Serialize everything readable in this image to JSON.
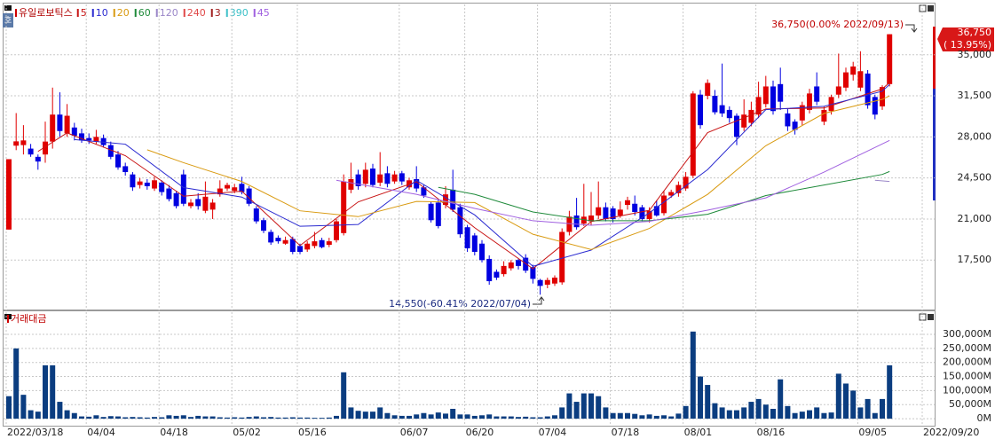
{
  "chart_data": {
    "type": "candlestick",
    "title": "유일로보틱스",
    "side_button": "호",
    "x": [
      "2022/03/18",
      "2022/03/21",
      "2022/03/22",
      "2022/03/23",
      "2022/03/24",
      "2022/03/25",
      "2022/03/28",
      "2022/03/29",
      "2022/03/30",
      "2022/03/31",
      "2022/04/01",
      "2022/04/04",
      "2022/04/05",
      "2022/04/06",
      "2022/04/07",
      "2022/04/08",
      "2022/04/11",
      "2022/04/12",
      "2022/04/13",
      "2022/04/14",
      "2022/04/15",
      "2022/04/18",
      "2022/04/19",
      "2022/04/20",
      "2022/04/21",
      "2022/04/22",
      "2022/04/25",
      "2022/04/26",
      "2022/04/27",
      "2022/04/28",
      "2022/04/29",
      "2022/05/02",
      "2022/05/03",
      "2022/05/04",
      "2022/05/06",
      "2022/05/09",
      "2022/05/10",
      "2022/05/11",
      "2022/05/12",
      "2022/05/13",
      "2022/05/16",
      "2022/05/17",
      "2022/05/18",
      "2022/05/19",
      "2022/05/20",
      "2022/05/23",
      "2022/05/24",
      "2022/05/25",
      "2022/05/26",
      "2022/05/27",
      "2022/05/30",
      "2022/05/31",
      "2022/06/02",
      "2022/06/03",
      "2022/06/07",
      "2022/06/08",
      "2022/06/09",
      "2022/06/10",
      "2022/06/13",
      "2022/06/14",
      "2022/06/15",
      "2022/06/16",
      "2022/06/17",
      "2022/06/20",
      "2022/06/21",
      "2022/06/22",
      "2022/06/23",
      "2022/06/24",
      "2022/06/27",
      "2022/06/28",
      "2022/06/29",
      "2022/06/30",
      "2022/07/01",
      "2022/07/04",
      "2022/07/05",
      "2022/07/06",
      "2022/07/07",
      "2022/07/08",
      "2022/07/11",
      "2022/07/12",
      "2022/07/13",
      "2022/07/14",
      "2022/07/15",
      "2022/07/18",
      "2022/07/19",
      "2022/07/20",
      "2022/07/21",
      "2022/07/22",
      "2022/07/25",
      "2022/07/26",
      "2022/07/27",
      "2022/07/28",
      "2022/07/29",
      "2022/08/01",
      "2022/08/02",
      "2022/08/03",
      "2022/08/04",
      "2022/08/05",
      "2022/08/08",
      "2022/08/09",
      "2022/08/10",
      "2022/08/11",
      "2022/08/12",
      "2022/08/16",
      "2022/08/17",
      "2022/08/18",
      "2022/08/19",
      "2022/08/22",
      "2022/08/23",
      "2022/08/24",
      "2022/08/25",
      "2022/08/26",
      "2022/08/29",
      "2022/08/30",
      "2022/08/31",
      "2022/09/01",
      "2022/09/02",
      "2022/09/05",
      "2022/09/06",
      "2022/09/07",
      "2022/09/08",
      "2022/09/13"
    ],
    "open": [
      20100,
      27250,
      27300,
      27000,
      26300,
      26500,
      27600,
      29900,
      28300,
      28800,
      28300,
      27900,
      27600,
      27900,
      27300,
      26500,
      25500,
      24800,
      23900,
      24100,
      23600,
      24100,
      23600,
      23200,
      24800,
      22100,
      22700,
      21700,
      21800,
      23100,
      23600,
      23400,
      24000,
      23600,
      21900,
      20900,
      19900,
      19400,
      18900,
      19300,
      18700,
      18400,
      18700,
      19200,
      18800,
      19200,
      19800,
      23500,
      24800,
      24000,
      25300,
      24100,
      24900,
      24200,
      24900,
      23700,
      24400,
      23700,
      22300,
      22400,
      22200,
      23500,
      22000,
      20300,
      19600,
      18900,
      17600,
      16500,
      16300,
      16800,
      17500,
      17700,
      16900,
      15800,
      15400,
      15500,
      15600,
      19900,
      21300,
      20600,
      20800,
      21300,
      22000,
      21900,
      21300,
      22200,
      22300,
      22000,
      21000,
      22100,
      21500,
      23000,
      23200,
      23600,
      24700,
      31600,
      31500,
      31500,
      30700,
      30300,
      29800,
      28800,
      29200,
      29900,
      30800,
      32300,
      32500,
      30000,
      29300,
      29400,
      30300,
      32300,
      29300,
      30200,
      31600,
      32200,
      33300,
      32200,
      33400,
      31400,
      30600,
      32500
    ],
    "high": [
      26100,
      30030,
      29000,
      27400,
      26500,
      29300,
      32200,
      31800,
      30800,
      29200,
      28700,
      28300,
      28600,
      28200,
      27600,
      26800,
      25800,
      25000,
      24500,
      24400,
      24600,
      24300,
      23900,
      23400,
      25200,
      22700,
      23200,
      24200,
      22700,
      24300,
      24100,
      24000,
      24600,
      23800,
      22100,
      21100,
      20100,
      19600,
      19500,
      19500,
      18900,
      19100,
      19900,
      19400,
      19400,
      21000,
      24800,
      25800,
      25200,
      25800,
      25700,
      26700,
      25500,
      25100,
      25100,
      24500,
      25500,
      23900,
      22500,
      22700,
      23800,
      25200,
      22300,
      20500,
      19800,
      19200,
      17900,
      16700,
      17400,
      17500,
      17600,
      18000,
      17100,
      15900,
      16000,
      16200,
      20200,
      21700,
      22800,
      24000,
      23300,
      24200,
      22400,
      22100,
      22500,
      22900,
      23000,
      22200,
      22000,
      22600,
      23400,
      23500,
      24200,
      25000,
      31900,
      32000,
      32900,
      32000,
      34250,
      30600,
      30000,
      31200,
      31000,
      32700,
      33200,
      32800,
      33900,
      30400,
      29500,
      31000,
      32100,
      33500,
      30600,
      31600,
      35100,
      33900,
      34400,
      35300,
      33700,
      31600,
      32400,
      36750
    ],
    "low": [
      20100,
      26870,
      26500,
      26300,
      25200,
      25800,
      27000,
      28000,
      28000,
      27700,
      27500,
      27400,
      27400,
      27100,
      26100,
      25200,
      24700,
      23400,
      23600,
      23500,
      23400,
      23000,
      22500,
      21900,
      22100,
      21900,
      21800,
      21500,
      21000,
      22900,
      23400,
      23200,
      23100,
      22100,
      20600,
      19800,
      18800,
      18900,
      18800,
      18000,
      18000,
      18200,
      18500,
      18500,
      18600,
      19000,
      19600,
      23200,
      23500,
      23700,
      23700,
      23800,
      23700,
      24000,
      23900,
      23500,
      23300,
      22800,
      20700,
      20200,
      21900,
      21600,
      19400,
      18200,
      17900,
      17300,
      15400,
      15800,
      16100,
      16600,
      16700,
      16400,
      15500,
      14550,
      15100,
      15300,
      15400,
      19600,
      20100,
      20400,
      20500,
      21000,
      20800,
      20700,
      21100,
      21800,
      21300,
      20800,
      20700,
      21200,
      21300,
      22800,
      22900,
      23400,
      24500,
      28700,
      31200,
      29900,
      29700,
      29200,
      27300,
      28500,
      28900,
      29600,
      30500,
      29900,
      30300,
      28500,
      28200,
      29000,
      30000,
      30700,
      29000,
      29900,
      31300,
      31900,
      32800,
      31900,
      30400,
      29500,
      30300,
      32300
    ],
    "close": [
      26100,
      27620,
      27700,
      26500,
      25900,
      27600,
      29900,
      28500,
      29800,
      28100,
      27700,
      27700,
      28000,
      27300,
      26300,
      25400,
      25000,
      23700,
      24200,
      23800,
      24300,
      23300,
      22700,
      22100,
      22300,
      22400,
      22100,
      22900,
      22400,
      23600,
      23900,
      23700,
      23300,
      22300,
      20800,
      20000,
      19000,
      19100,
      19200,
      18200,
      18200,
      18900,
      19100,
      18600,
      19100,
      20800,
      24200,
      24400,
      23800,
      25200,
      23900,
      24800,
      24000,
      24800,
      24200,
      24300,
      23600,
      23000,
      20900,
      20400,
      23100,
      21800,
      19700,
      18500,
      18200,
      17500,
      15700,
      16000,
      17000,
      17300,
      17000,
      16600,
      15900,
      15300,
      15800,
      16000,
      19900,
      21200,
      20300,
      21200,
      21300,
      22000,
      21000,
      21000,
      21800,
      22600,
      21600,
      21000,
      21700,
      21300,
      23000,
      23300,
      23900,
      24600,
      31700,
      29000,
      32600,
      30100,
      30000,
      29600,
      28000,
      29900,
      30300,
      31400,
      32300,
      30200,
      31000,
      28900,
      28600,
      30700,
      31700,
      31000,
      30300,
      31400,
      32300,
      33500,
      34000,
      33600,
      30700,
      29900,
      32250,
      36750
    ],
    "up_color": "#e00000",
    "down_color": "#0000e0",
    "ylim": [
      13210,
      39290
    ],
    "yticks": [
      {
        "value": 17500,
        "label": "17,500"
      },
      {
        "value": 21000,
        "label": "21,000"
      },
      {
        "value": 24500,
        "label": "24,500"
      },
      {
        "value": 28000,
        "label": "28,000"
      },
      {
        "value": 31500,
        "label": "31,500"
      },
      {
        "value": 35000,
        "label": "35,000"
      }
    ],
    "xticks": [
      "2022/03/18",
      {
        "value": "2022/04/04",
        "label": "04/04"
      },
      {
        "value": "2022/04/18",
        "label": "04/18"
      },
      {
        "value": "2022/05/02",
        "label": "05/02"
      },
      {
        "value": "2022/05/16",
        "label": "05/16"
      },
      {
        "value": "2022/06/07",
        "label": "06/07"
      },
      {
        "value": "2022/06/20",
        "label": "06/20"
      },
      {
        "value": "2022/07/04",
        "label": "07/04"
      },
      {
        "value": "2022/07/18",
        "label": "07/18"
      },
      {
        "value": "2022/08/01",
        "label": "08/01"
      },
      {
        "value": "2022/08/16",
        "label": "08/16"
      },
      {
        "value": "2022/09/05",
        "label": "09/05"
      },
      "2022/09/20"
    ],
    "grid": true,
    "moving_averages": [
      {
        "name": "5",
        "color": "#c81414",
        "x": [
          "2022/03/24",
          "2022/03/30",
          "2022/04/11",
          "2022/04/21",
          "2022/05/03",
          "2022/05/16",
          "2022/05/26",
          "2022/06/09",
          "2022/06/21",
          "2022/07/01",
          "2022/07/13",
          "2022/07/25",
          "2022/08/04",
          "2022/08/17",
          "2022/08/29",
          "2022/09/08",
          "2022/09/13"
        ],
        "values": [
          26760,
          28340,
          26400,
          22940,
          23380,
          18740,
          22460,
          24180,
          20260,
          16760,
          20780,
          21740,
          28360,
          30380,
          30460,
          32090,
          32640
        ]
      },
      {
        "name": "10",
        "color": "#2a2ad0",
        "x": [
          "2022/03/31",
          "2022/04/11",
          "2022/04/21",
          "2022/05/03",
          "2022/05/16",
          "2022/05/26",
          "2022/06/09",
          "2022/06/21",
          "2022/07/01",
          "2022/07/13",
          "2022/07/25",
          "2022/08/04",
          "2022/08/17",
          "2022/08/29",
          "2022/09/08",
          "2022/09/13"
        ],
        "values": [
          27770,
          27380,
          23680,
          22870,
          20380,
          20530,
          24300,
          21350,
          16970,
          18350,
          21520,
          25210,
          30320,
          30610,
          31895,
          32470
        ]
      },
      {
        "name": "20",
        "color": "#d99a10",
        "x": [
          "2022/04/14",
          "2022/04/21",
          "2022/05/03",
          "2022/05/16",
          "2022/05/26",
          "2022/06/09",
          "2022/06/21",
          "2022/07/01",
          "2022/07/13",
          "2022/07/25",
          "2022/08/04",
          "2022/08/17",
          "2022/08/29",
          "2022/09/08",
          "2022/09/13"
        ],
        "values": [
          26900,
          25800,
          24200,
          21700,
          21200,
          22500,
          22400,
          19700,
          18400,
          20200,
          23100,
          27250,
          30000,
          31200,
          31500
        ]
      },
      {
        "name": "60",
        "color": "#1e8a3a",
        "x": [
          "2022/06/14",
          "2022/06/21",
          "2022/07/01",
          "2022/07/13",
          "2022/07/25",
          "2022/08/04",
          "2022/08/17",
          "2022/08/29",
          "2022/09/08",
          "2022/09/13"
        ],
        "values": [
          23700,
          23100,
          21600,
          20850,
          20850,
          21400,
          23000,
          23900,
          24800,
          25050
        ]
      },
      {
        "name": "120",
        "color": "#9a86c8",
        "x": [
          "2022/09/07",
          "2022/09/13"
        ],
        "values": [
          24300,
          24200
        ]
      },
      {
        "name": "240",
        "color": "#e04848",
        "x": [],
        "values": []
      },
      {
        "name": "3",
        "color": "#a01e1e",
        "x": [],
        "values": []
      },
      {
        "name": "390",
        "color": "#3cc0c8",
        "x": [],
        "values": []
      },
      {
        "name": "45",
        "color": "#a060e0",
        "x": [
          "2022/05/23",
          "2022/06/09",
          "2022/06/21",
          "2022/07/01",
          "2022/07/13",
          "2022/07/25",
          "2022/08/04",
          "2022/08/17",
          "2022/08/29",
          "2022/09/13"
        ],
        "values": [
          24300,
          23100,
          21900,
          20850,
          20470,
          20800,
          21750,
          22800,
          25000,
          27700
        ]
      }
    ],
    "annotations": {
      "high_label": "36,750(0.00% 2022/09/13)",
      "low_label": "14,550(-60.41% 2022/07/04)",
      "last_price_label": "36,750",
      "change_label": "( 13.95%)"
    },
    "volume": {
      "title": "거래대금",
      "color": "#0b3d80",
      "values": [
        80000,
        250000,
        85000,
        30000,
        25000,
        190000,
        190000,
        60000,
        30000,
        20000,
        8000,
        7000,
        12000,
        6000,
        9000,
        8000,
        5000,
        6000,
        5000,
        4000,
        6000,
        5000,
        12000,
        10000,
        12000,
        6000,
        10000,
        8000,
        8000,
        5000,
        4000,
        5000,
        4000,
        6000,
        8000,
        5000,
        6000,
        4000,
        4000,
        5000,
        4000,
        4000,
        3000,
        3000,
        4000,
        10000,
        165000,
        40000,
        28000,
        25000,
        25000,
        40000,
        20000,
        12000,
        10000,
        10000,
        15000,
        20000,
        15000,
        22000,
        18000,
        35000,
        15000,
        15000,
        10000,
        12000,
        15000,
        8000,
        8000,
        8000,
        6000,
        7000,
        5000,
        5000,
        8000,
        12000,
        40000,
        90000,
        60000,
        90000,
        90000,
        80000,
        40000,
        20000,
        20000,
        20000,
        17000,
        12000,
        15000,
        10000,
        12000,
        8000,
        18000,
        45000,
        310000,
        150000,
        120000,
        55000,
        40000,
        30000,
        30000,
        40000,
        60000,
        70000,
        50000,
        35000,
        140000,
        45000,
        20000,
        25000,
        30000,
        40000,
        20000,
        22000,
        160000,
        125000,
        100000,
        40000,
        70000,
        20000,
        70000,
        190000
      ],
      "ylim": [
        -25000,
        379000
      ],
      "yticks": [
        {
          "value": 0,
          "label": "0M"
        },
        {
          "value": 50000,
          "label": "50,000M"
        },
        {
          "value": 100000,
          "label": "100,000M"
        },
        {
          "value": 150000,
          "label": "150,000M"
        },
        {
          "value": 200000,
          "label": "200,000M"
        },
        {
          "value": 250000,
          "label": "250,000M"
        },
        {
          "value": 300000,
          "label": "300,000M"
        }
      ]
    }
  }
}
